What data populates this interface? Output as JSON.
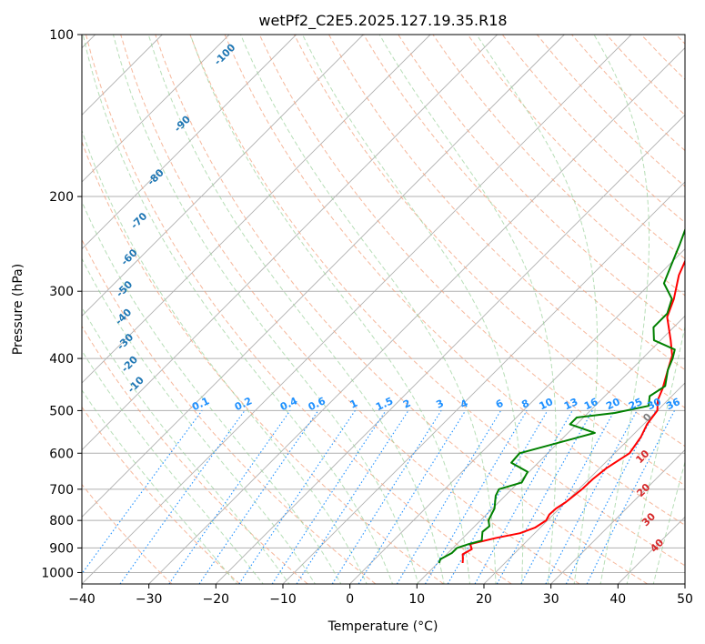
{
  "chart_data": {
    "type": "line",
    "chart_kind": "skew-t log-p sounding",
    "title": "wetPf2_C2E5.2025.127.19.35.R18",
    "xlabel": "Temperature (°C)",
    "ylabel": "Pressure (hPa)",
    "xlim": [
      -40,
      50
    ],
    "ylim": [
      1050,
      100
    ],
    "x_ticks": [
      -40,
      -30,
      -20,
      -10,
      0,
      10,
      20,
      30,
      40,
      50
    ],
    "y_ticks": [
      100,
      200,
      300,
      400,
      500,
      600,
      700,
      800,
      900,
      1000
    ],
    "grid": true,
    "series": [
      {
        "name": "Temperature",
        "color": "#ff0000",
        "points": [
          [
            13.7,
            960
          ],
          [
            13.0,
            940
          ],
          [
            12.4,
            925
          ],
          [
            13.0,
            905
          ],
          [
            12.0,
            885
          ],
          [
            15.0,
            862
          ],
          [
            17.8,
            845
          ],
          [
            19.2,
            825
          ],
          [
            19.8,
            800
          ],
          [
            19.4,
            780
          ],
          [
            19.5,
            760
          ],
          [
            20.0,
            740
          ],
          [
            20.5,
            700
          ],
          [
            20.6,
            670
          ],
          [
            21.0,
            640
          ],
          [
            22.2,
            600
          ],
          [
            21.5,
            560
          ],
          [
            20.5,
            530
          ],
          [
            20.0,
            500
          ],
          [
            18.5,
            478
          ],
          [
            17.5,
            455
          ],
          [
            15.5,
            420
          ],
          [
            14.0,
            395
          ],
          [
            11.5,
            370
          ],
          [
            7.5,
            335
          ],
          [
            5.8,
            310
          ],
          [
            3.0,
            280
          ],
          [
            0.8,
            250
          ],
          [
            -2.5,
            215
          ],
          [
            -6.5,
            185
          ],
          [
            -9.5,
            165
          ],
          [
            -12.0,
            150
          ],
          [
            -13.0,
            140
          ],
          [
            -13.8,
            134
          ],
          [
            -10.8,
            128
          ],
          [
            -7.0,
            122
          ],
          [
            -3.0,
            116
          ],
          [
            0.2,
            110
          ],
          [
            3.0,
            104
          ],
          [
            4.2,
            100
          ]
        ]
      },
      {
        "name": "Dewpoint",
        "color": "#008000",
        "points": [
          [
            10.2,
            960
          ],
          [
            9.8,
            945
          ],
          [
            10.6,
            920
          ],
          [
            10.6,
            900
          ],
          [
            11.8,
            885
          ],
          [
            13.2,
            872
          ],
          [
            12.0,
            840
          ],
          [
            12.2,
            820
          ],
          [
            11.2,
            800
          ],
          [
            10.3,
            760
          ],
          [
            8.6,
            720
          ],
          [
            8.1,
            700
          ],
          [
            10.5,
            680
          ],
          [
            9.8,
            650
          ],
          [
            6.0,
            625
          ],
          [
            5.8,
            600
          ],
          [
            14.0,
            550
          ],
          [
            9.0,
            530
          ],
          [
            9.0,
            515
          ],
          [
            14.0,
            505
          ],
          [
            18.0,
            490
          ],
          [
            16.7,
            470
          ],
          [
            17.5,
            450
          ],
          [
            15.5,
            420
          ],
          [
            14.5,
            400
          ],
          [
            13.5,
            385
          ],
          [
            9.0,
            370
          ],
          [
            7.0,
            350
          ],
          [
            7.0,
            330
          ],
          [
            5.5,
            310
          ],
          [
            2.0,
            290
          ],
          [
            0.5,
            270
          ],
          [
            -1.5,
            245
          ],
          [
            -6.5,
            195
          ],
          [
            -11.0,
            165
          ],
          [
            -14.3,
            150
          ],
          [
            -14.5,
            145
          ],
          [
            -13.0,
            137
          ],
          [
            -10.0,
            132
          ],
          [
            -8.0,
            129
          ],
          [
            -7.0,
            125
          ],
          [
            -6.5,
            118
          ],
          [
            -5.5,
            110
          ],
          [
            -4.2,
            100
          ]
        ]
      }
    ],
    "dry_adiabat_labels": [
      "-100",
      "-90",
      "-80",
      "-70",
      "-60",
      "-50",
      "-40",
      "-30",
      "-20",
      "-10"
    ],
    "moist_adiabat_labels": [
      "0",
      "10",
      "20",
      "30",
      "40"
    ],
    "mixing_ratio_labels": [
      "0.1",
      "0.2",
      "0.4",
      "0.6",
      "1",
      "1.5",
      "2",
      "3",
      "4",
      "6",
      "8",
      "10",
      "13",
      "16",
      "20",
      "25",
      "30",
      "36"
    ],
    "colors": {
      "grid": "#b0b0b0",
      "dry_adiabat": "#f4a582",
      "moist_adiabat_text": "#d62728",
      "moist_adiabat": "#98d098",
      "mixing_ratio": "#1e90ff",
      "dry_adiabat_text": "#1f77b4",
      "theta_line": "#d2b48c"
    }
  }
}
